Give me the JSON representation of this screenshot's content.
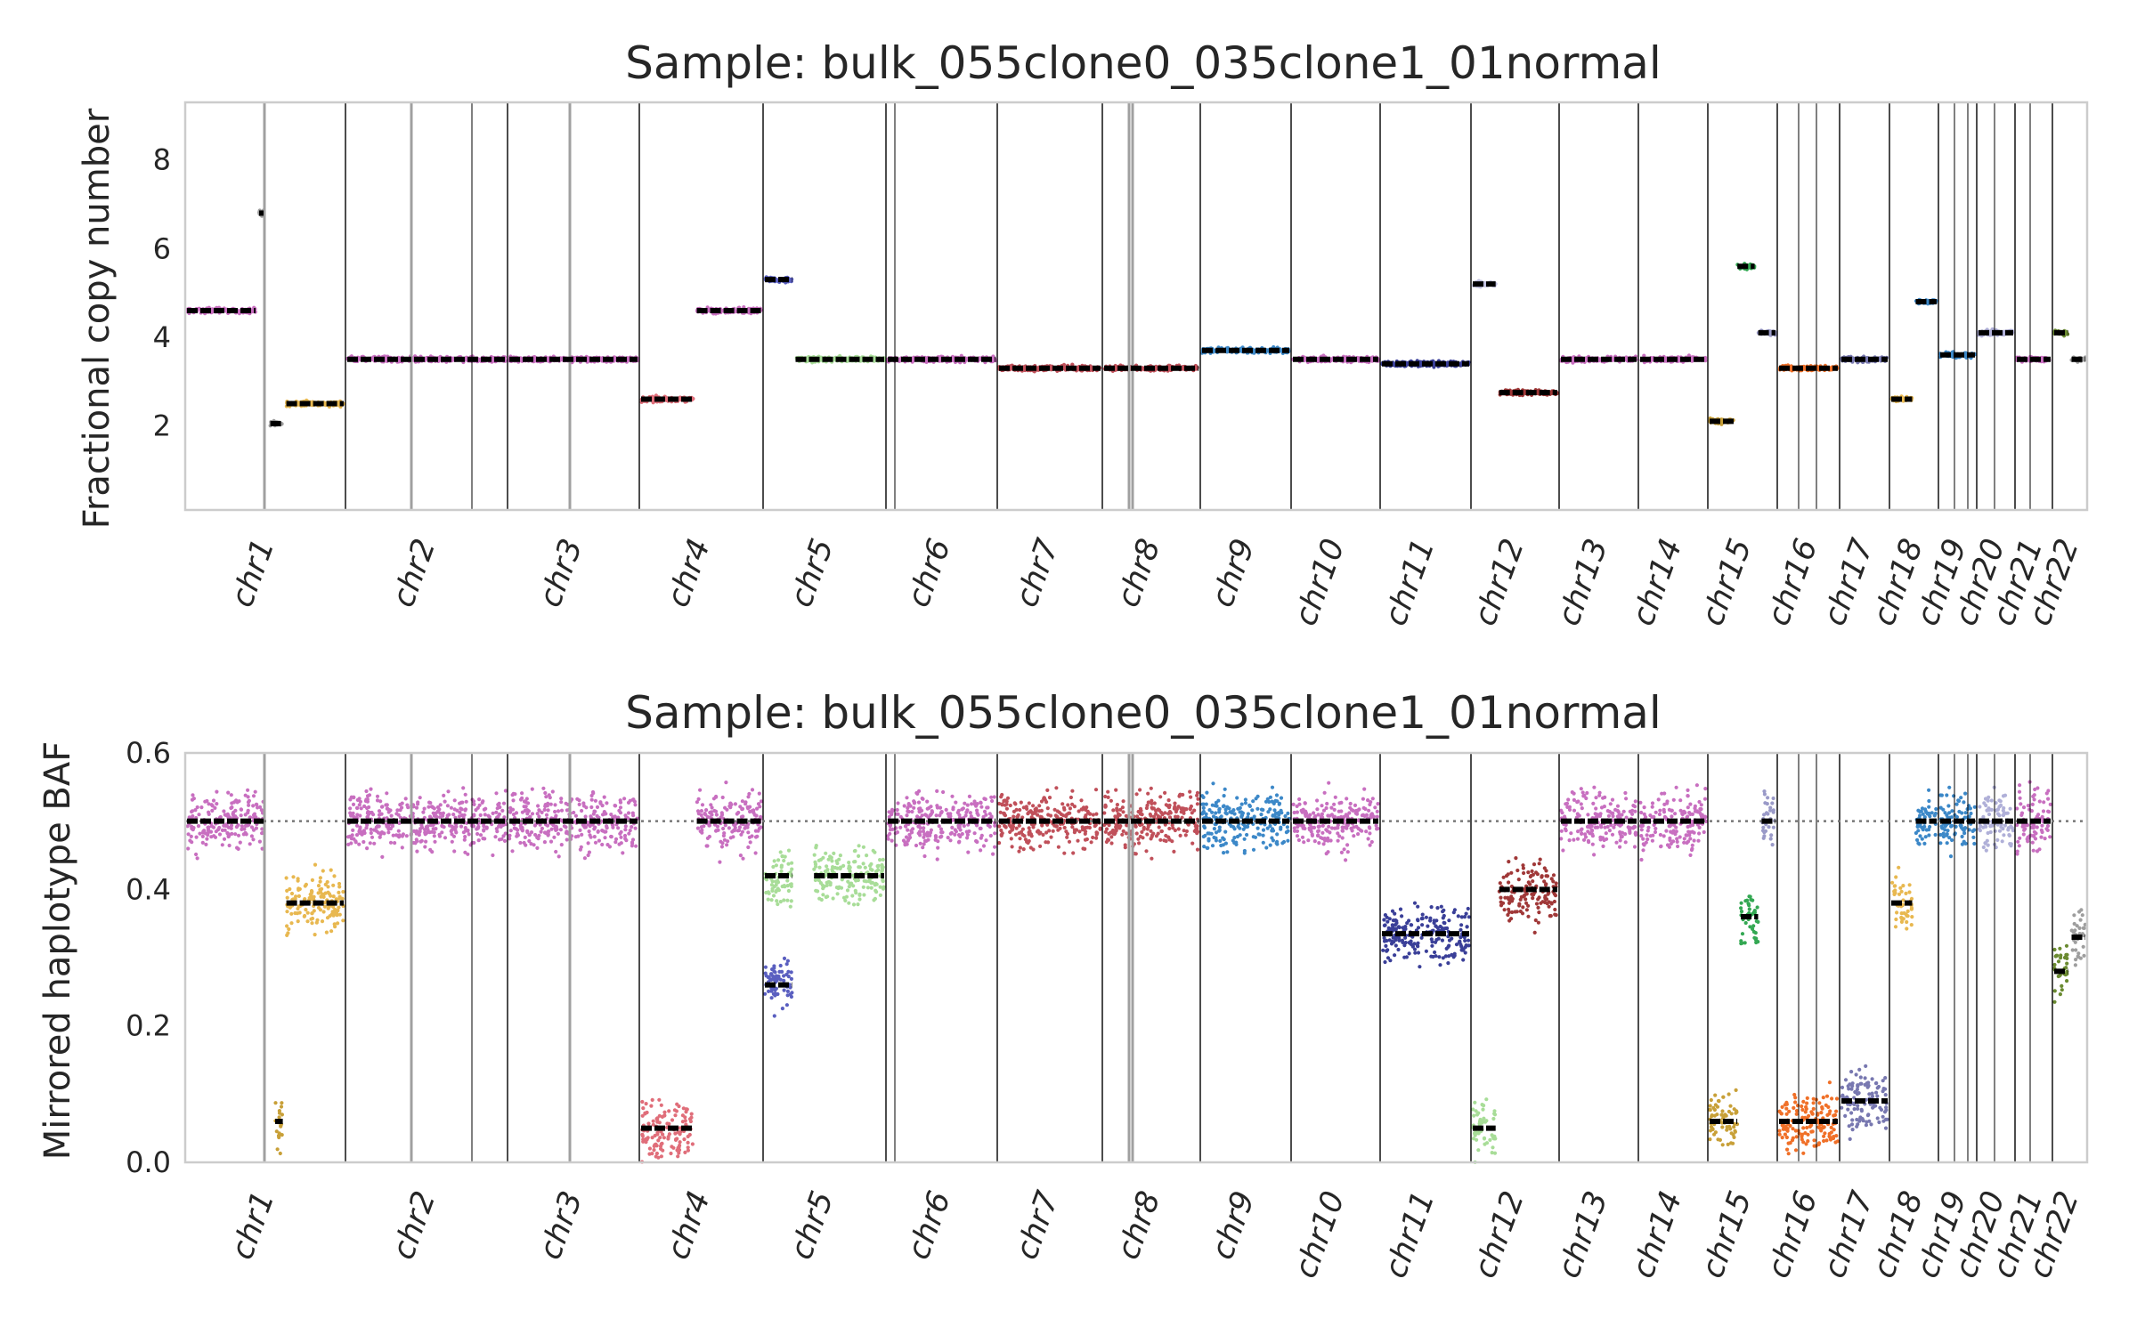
{
  "chart_data": [
    {
      "type": "scatter",
      "title": "Sample: bulk_055clone0_035clone1_01normal",
      "ylabel": "Fractional copy number",
      "xlabel": "",
      "ylim": [
        0.1,
        9.3
      ],
      "yticks": [
        2,
        4,
        6,
        8
      ],
      "grid": false,
      "chromosomes": [
        "chr1",
        "chr2",
        "chr3",
        "chr4",
        "chr5",
        "chr6",
        "chr7",
        "chr8",
        "chr9",
        "chr10",
        "chr11",
        "chr12",
        "chr13",
        "chr14",
        "chr15",
        "chr16",
        "chr17",
        "chr18",
        "chr19",
        "chr20",
        "chr21",
        "chr22"
      ],
      "segments": [
        {
          "chr": "chr1",
          "start": 0.0,
          "end": 0.45,
          "y": 4.6,
          "color": "#c86fc0"
        },
        {
          "chr": "chr1",
          "start": 0.45,
          "end": 0.5,
          "y": 6.8,
          "color": "#9e9e9e"
        },
        {
          "chr": "chr1",
          "start": 0.52,
          "end": 0.62,
          "y": 2.05,
          "color": "#9e9e9e"
        },
        {
          "chr": "chr1",
          "start": 0.62,
          "end": 1.0,
          "y": 2.5,
          "color": "#e8b850"
        },
        {
          "chr": "chr2",
          "start": 0.0,
          "end": 1.0,
          "y": 3.5,
          "color": "#c86fc0"
        },
        {
          "chr": "chr3",
          "start": 0.0,
          "end": 1.0,
          "y": 3.5,
          "color": "#c86fc0"
        },
        {
          "chr": "chr4",
          "start": 0.0,
          "end": 0.45,
          "y": 2.6,
          "color": "#e06e7a"
        },
        {
          "chr": "chr4",
          "start": 0.45,
          "end": 1.0,
          "y": 4.6,
          "color": "#c86fc0"
        },
        {
          "chr": "chr5",
          "start": 0.0,
          "end": 0.25,
          "y": 5.3,
          "color": "#5a5fc0"
        },
        {
          "chr": "chr5",
          "start": 0.25,
          "end": 1.0,
          "y": 3.5,
          "color": "#a8dd98"
        },
        {
          "chr": "chr6",
          "start": 0.0,
          "end": 1.0,
          "y": 3.5,
          "color": "#c86fc0"
        },
        {
          "chr": "chr7",
          "start": 0.0,
          "end": 1.0,
          "y": 3.3,
          "color": "#c0505a"
        },
        {
          "chr": "chr8",
          "start": 0.0,
          "end": 1.0,
          "y": 3.3,
          "color": "#c0505a"
        },
        {
          "chr": "chr9",
          "start": 0.0,
          "end": 1.0,
          "y": 3.7,
          "color": "#3c88c8"
        },
        {
          "chr": "chr10",
          "start": 0.0,
          "end": 1.0,
          "y": 3.5,
          "color": "#c86fc0"
        },
        {
          "chr": "chr11",
          "start": 0.0,
          "end": 1.0,
          "y": 3.4,
          "color": "#3a3f98"
        },
        {
          "chr": "chr12",
          "start": 0.0,
          "end": 0.3,
          "y": 5.2,
          "color": "#c0c0e0"
        },
        {
          "chr": "chr12",
          "start": 0.3,
          "end": 1.0,
          "y": 2.75,
          "color": "#a03838"
        },
        {
          "chr": "chr13",
          "start": 0.0,
          "end": 1.0,
          "y": 3.5,
          "color": "#c86fc0"
        },
        {
          "chr": "chr14",
          "start": 0.0,
          "end": 1.0,
          "y": 3.5,
          "color": "#c86fc0"
        },
        {
          "chr": "chr15",
          "start": 0.0,
          "end": 0.4,
          "y": 2.1,
          "color": "#c8a038"
        },
        {
          "chr": "chr15",
          "start": 0.4,
          "end": 0.7,
          "y": 5.6,
          "color": "#34a853"
        },
        {
          "chr": "chr15",
          "start": 0.7,
          "end": 1.0,
          "y": 4.1,
          "color": "#9a9ac8"
        },
        {
          "chr": "chr16",
          "start": 0.0,
          "end": 1.0,
          "y": 3.3,
          "color": "#f07028"
        },
        {
          "chr": "chr17",
          "start": 0.0,
          "end": 1.0,
          "y": 3.5,
          "color": "#7878b0"
        },
        {
          "chr": "chr18",
          "start": 0.0,
          "end": 0.5,
          "y": 2.6,
          "color": "#e8b850"
        },
        {
          "chr": "chr18",
          "start": 0.5,
          "end": 1.0,
          "y": 4.8,
          "color": "#3c88c8"
        },
        {
          "chr": "chr19",
          "start": 0.0,
          "end": 1.0,
          "y": 3.6,
          "color": "#3c88c8"
        },
        {
          "chr": "chr20",
          "start": 0.0,
          "end": 1.0,
          "y": 4.1,
          "color": "#b0b0d8"
        },
        {
          "chr": "chr21",
          "start": 0.0,
          "end": 1.0,
          "y": 3.5,
          "color": "#c86fc0"
        },
        {
          "chr": "chr22",
          "start": 0.0,
          "end": 0.5,
          "y": 4.1,
          "color": "#6a8a30"
        },
        {
          "chr": "chr22",
          "start": 0.5,
          "end": 1.0,
          "y": 3.5,
          "color": "#9e9e9e"
        }
      ]
    },
    {
      "type": "scatter",
      "title": "Sample: bulk_055clone0_035clone1_01normal",
      "ylabel": "Mirrored haplotype BAF",
      "xlabel": "",
      "ylim": [
        0.0,
        0.6
      ],
      "yticks": [
        0.0,
        0.2,
        0.4,
        0.6
      ],
      "reference_line": 0.5,
      "grid": false,
      "chromosomes": [
        "chr1",
        "chr2",
        "chr3",
        "chr4",
        "chr5",
        "chr6",
        "chr7",
        "chr8",
        "chr9",
        "chr10",
        "chr11",
        "chr12",
        "chr13",
        "chr14",
        "chr15",
        "chr16",
        "chr17",
        "chr18",
        "chr19",
        "chr20",
        "chr21",
        "chr22"
      ],
      "segments": [
        {
          "chr": "chr1",
          "start": 0.0,
          "end": 0.5,
          "y": 0.5,
          "color": "#c86fc0"
        },
        {
          "chr": "chr1",
          "start": 0.55,
          "end": 0.62,
          "y": 0.06,
          "color": "#c8a038"
        },
        {
          "chr": "chr1",
          "start": 0.62,
          "end": 1.0,
          "y": 0.38,
          "color": "#e8b850"
        },
        {
          "chr": "chr2",
          "start": 0.0,
          "end": 1.0,
          "y": 0.5,
          "color": "#c86fc0"
        },
        {
          "chr": "chr3",
          "start": 0.0,
          "end": 1.0,
          "y": 0.5,
          "color": "#c86fc0"
        },
        {
          "chr": "chr4",
          "start": 0.0,
          "end": 0.45,
          "y": 0.05,
          "color": "#e06e7a"
        },
        {
          "chr": "chr4",
          "start": 0.45,
          "end": 1.0,
          "y": 0.5,
          "color": "#c86fc0"
        },
        {
          "chr": "chr5",
          "start": 0.0,
          "end": 0.25,
          "y": 0.26,
          "color": "#5a5fc0"
        },
        {
          "chr": "chr5",
          "start": 0.0,
          "end": 0.25,
          "y": 0.42,
          "color": "#a8dd98"
        },
        {
          "chr": "chr5",
          "start": 0.4,
          "end": 1.0,
          "y": 0.42,
          "color": "#a8dd98"
        },
        {
          "chr": "chr6",
          "start": 0.0,
          "end": 1.0,
          "y": 0.5,
          "color": "#c86fc0"
        },
        {
          "chr": "chr7",
          "start": 0.0,
          "end": 1.0,
          "y": 0.5,
          "color": "#c0505a"
        },
        {
          "chr": "chr8",
          "start": 0.0,
          "end": 1.0,
          "y": 0.5,
          "color": "#c0505a"
        },
        {
          "chr": "chr9",
          "start": 0.0,
          "end": 1.0,
          "y": 0.5,
          "color": "#3c88c8"
        },
        {
          "chr": "chr10",
          "start": 0.0,
          "end": 1.0,
          "y": 0.5,
          "color": "#c86fc0"
        },
        {
          "chr": "chr11",
          "start": 0.0,
          "end": 1.0,
          "y": 0.335,
          "color": "#3a3f98"
        },
        {
          "chr": "chr12",
          "start": 0.0,
          "end": 0.3,
          "y": 0.05,
          "color": "#a8dd98"
        },
        {
          "chr": "chr12",
          "start": 0.3,
          "end": 1.0,
          "y": 0.4,
          "color": "#a03838"
        },
        {
          "chr": "chr13",
          "start": 0.0,
          "end": 1.0,
          "y": 0.5,
          "color": "#c86fc0"
        },
        {
          "chr": "chr14",
          "start": 0.0,
          "end": 1.0,
          "y": 0.5,
          "color": "#c86fc0"
        },
        {
          "chr": "chr15",
          "start": 0.0,
          "end": 0.45,
          "y": 0.06,
          "color": "#c8a038"
        },
        {
          "chr": "chr15",
          "start": 0.45,
          "end": 0.75,
          "y": 0.36,
          "color": "#34a853"
        },
        {
          "chr": "chr15",
          "start": 0.75,
          "end": 1.0,
          "y": 0.5,
          "color": "#9a9ac8"
        },
        {
          "chr": "chr16",
          "start": 0.0,
          "end": 1.0,
          "y": 0.06,
          "color": "#f07028"
        },
        {
          "chr": "chr17",
          "start": 0.0,
          "end": 1.0,
          "y": 0.09,
          "color": "#7878b0"
        },
        {
          "chr": "chr18",
          "start": 0.0,
          "end": 0.5,
          "y": 0.38,
          "color": "#e8b850"
        },
        {
          "chr": "chr18",
          "start": 0.5,
          "end": 1.0,
          "y": 0.5,
          "color": "#3c88c8"
        },
        {
          "chr": "chr19",
          "start": 0.0,
          "end": 1.0,
          "y": 0.5,
          "color": "#3c88c8"
        },
        {
          "chr": "chr20",
          "start": 0.0,
          "end": 1.0,
          "y": 0.5,
          "color": "#b0b0d8"
        },
        {
          "chr": "chr21",
          "start": 0.0,
          "end": 1.0,
          "y": 0.5,
          "color": "#c86fc0"
        },
        {
          "chr": "chr22",
          "start": 0.0,
          "end": 0.5,
          "y": 0.28,
          "color": "#6a8a30"
        },
        {
          "chr": "chr22",
          "start": 0.5,
          "end": 1.0,
          "y": 0.33,
          "color": "#9e9e9e"
        }
      ]
    }
  ]
}
